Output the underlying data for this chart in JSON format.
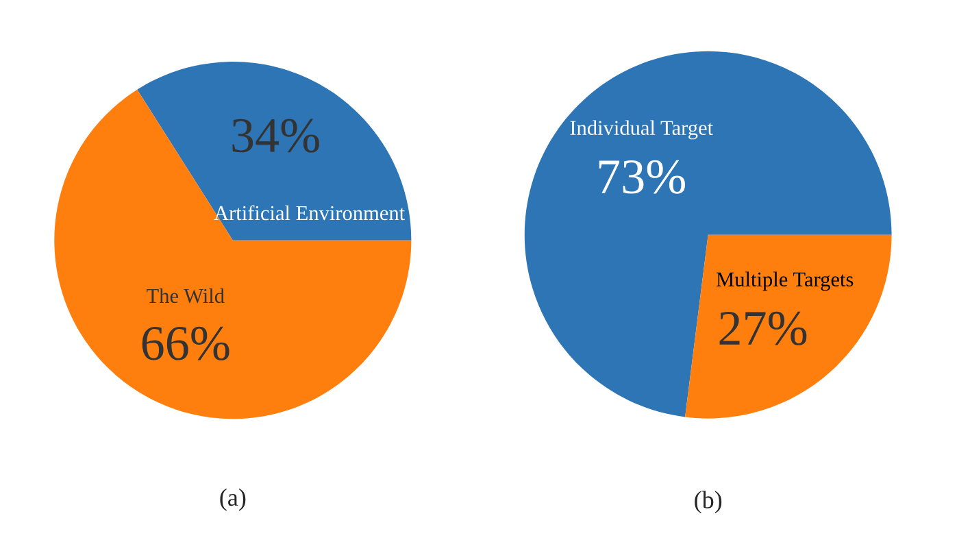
{
  "chart_data": [
    {
      "type": "pie",
      "title": "(a)",
      "categories": [
        "Artificial Environment",
        "The Wild"
      ],
      "values": [
        34,
        66
      ],
      "colors": [
        "#2e75b6",
        "#ff7f0e"
      ],
      "value_labels": [
        "34%",
        "66%"
      ]
    },
    {
      "type": "pie",
      "title": "(b)",
      "categories": [
        "Individual Target",
        "Multiple Targets"
      ],
      "values": [
        73,
        27
      ],
      "colors": [
        "#2e75b6",
        "#ff7f0e"
      ],
      "value_labels": [
        "73%",
        "27%"
      ]
    }
  ]
}
